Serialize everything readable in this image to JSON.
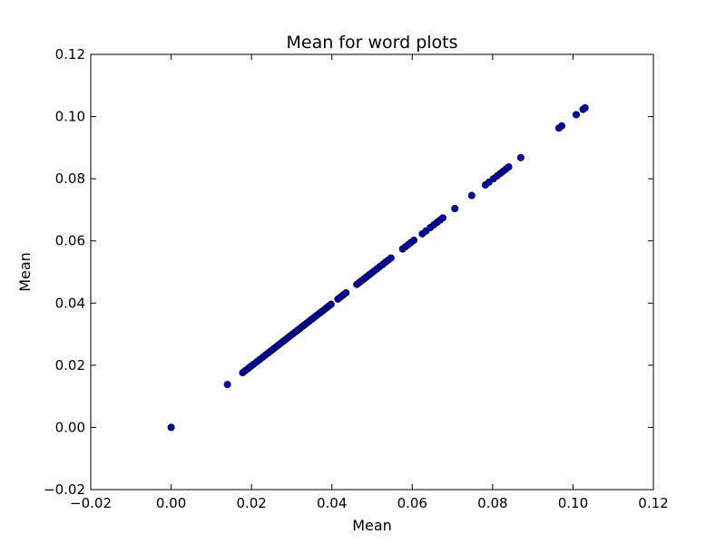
{
  "chart_data": {
    "type": "scatter",
    "title": "Mean for word plots",
    "xlabel": "Mean",
    "ylabel": "Mean",
    "xlim": [
      -0.02,
      0.12
    ],
    "ylim": [
      -0.02,
      0.12
    ],
    "xticks": [
      -0.02,
      0.0,
      0.02,
      0.04,
      0.06,
      0.08,
      0.1,
      0.12
    ],
    "yticks": [
      -0.02,
      0.0,
      0.02,
      0.04,
      0.06,
      0.08,
      0.1,
      0.12
    ],
    "xtick_labels": [
      "−0.02",
      "0.00",
      "0.02",
      "0.04",
      "0.06",
      "0.08",
      "0.10",
      "0.12"
    ],
    "ytick_labels": [
      "−0.02",
      "0.00",
      "0.02",
      "0.04",
      "0.06",
      "0.08",
      "0.10",
      "0.12"
    ],
    "grid": false,
    "marker_color": "#0000bf",
    "marker_edge_color": "#000000",
    "points": [
      [
        0.0,
        0.0
      ],
      [
        0.014,
        0.0138
      ],
      [
        0.0178,
        0.0176
      ],
      [
        0.0185,
        0.0183
      ],
      [
        0.0192,
        0.019
      ],
      [
        0.0198,
        0.0196
      ],
      [
        0.0205,
        0.0203
      ],
      [
        0.0213,
        0.0211
      ],
      [
        0.022,
        0.0218
      ],
      [
        0.0228,
        0.0226
      ],
      [
        0.0235,
        0.0233
      ],
      [
        0.0242,
        0.024
      ],
      [
        0.0248,
        0.0246
      ],
      [
        0.0254,
        0.0252
      ],
      [
        0.026,
        0.0258
      ],
      [
        0.0266,
        0.0264
      ],
      [
        0.0272,
        0.027
      ],
      [
        0.0278,
        0.0276
      ],
      [
        0.0284,
        0.0282
      ],
      [
        0.029,
        0.0288
      ],
      [
        0.0296,
        0.0294
      ],
      [
        0.0302,
        0.03
      ],
      [
        0.0308,
        0.0306
      ],
      [
        0.0314,
        0.0312
      ],
      [
        0.032,
        0.0318
      ],
      [
        0.0326,
        0.0324
      ],
      [
        0.0332,
        0.033
      ],
      [
        0.0338,
        0.0336
      ],
      [
        0.0344,
        0.0342
      ],
      [
        0.035,
        0.0348
      ],
      [
        0.0356,
        0.0354
      ],
      [
        0.0362,
        0.036
      ],
      [
        0.0368,
        0.0366
      ],
      [
        0.0374,
        0.0372
      ],
      [
        0.038,
        0.0378
      ],
      [
        0.0386,
        0.0384
      ],
      [
        0.0392,
        0.039
      ],
      [
        0.0398,
        0.0396
      ],
      [
        0.0415,
        0.0413
      ],
      [
        0.0421,
        0.0419
      ],
      [
        0.0428,
        0.0426
      ],
      [
        0.0435,
        0.0433
      ],
      [
        0.0462,
        0.046
      ],
      [
        0.0468,
        0.0466
      ],
      [
        0.0474,
        0.0472
      ],
      [
        0.048,
        0.0478
      ],
      [
        0.0486,
        0.0484
      ],
      [
        0.0492,
        0.049
      ],
      [
        0.0498,
        0.0496
      ],
      [
        0.0505,
        0.0503
      ],
      [
        0.0512,
        0.051
      ],
      [
        0.0519,
        0.0517
      ],
      [
        0.0526,
        0.0524
      ],
      [
        0.0533,
        0.0531
      ],
      [
        0.054,
        0.0538
      ],
      [
        0.0547,
        0.0545
      ],
      [
        0.0576,
        0.0574
      ],
      [
        0.0583,
        0.0581
      ],
      [
        0.059,
        0.0588
      ],
      [
        0.0597,
        0.0595
      ],
      [
        0.0604,
        0.0602
      ],
      [
        0.0625,
        0.0623
      ],
      [
        0.0634,
        0.0632
      ],
      [
        0.0645,
        0.0643
      ],
      [
        0.0654,
        0.0652
      ],
      [
        0.0662,
        0.066
      ],
      [
        0.0669,
        0.0667
      ],
      [
        0.0676,
        0.0674
      ],
      [
        0.0706,
        0.0704
      ],
      [
        0.0748,
        0.0746
      ],
      [
        0.0782,
        0.078
      ],
      [
        0.0791,
        0.0789
      ],
      [
        0.0802,
        0.08
      ],
      [
        0.0811,
        0.0809
      ],
      [
        0.0819,
        0.0817
      ],
      [
        0.0826,
        0.0824
      ],
      [
        0.0833,
        0.0831
      ],
      [
        0.084,
        0.0838
      ],
      [
        0.087,
        0.0868
      ],
      [
        0.0965,
        0.0963
      ],
      [
        0.0972,
        0.097
      ],
      [
        0.1008,
        0.1006
      ],
      [
        0.1025,
        0.1023
      ],
      [
        0.103,
        0.1028
      ]
    ]
  }
}
